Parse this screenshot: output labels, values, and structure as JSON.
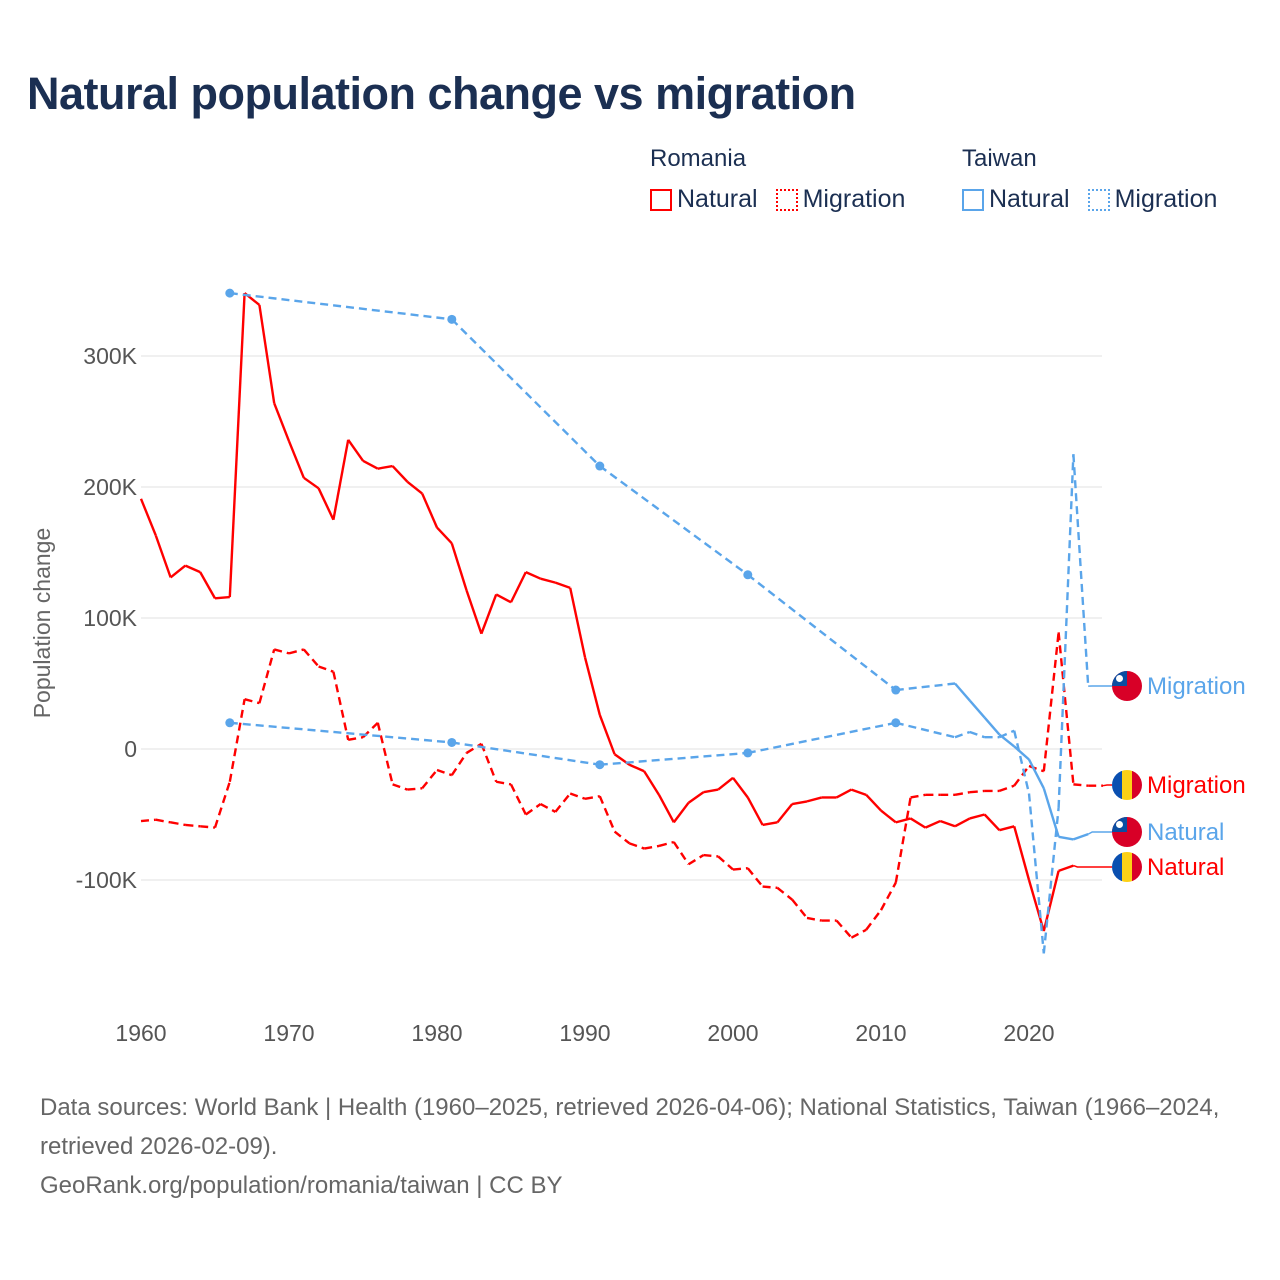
{
  "title": "Natural population change vs migration",
  "legend": {
    "groups": [
      {
        "name": "Romania",
        "color": "#ff0000",
        "items": [
          {
            "label": "Natural",
            "style": "solid"
          },
          {
            "label": "Migration",
            "style": "dotted"
          }
        ]
      },
      {
        "name": "Taiwan",
        "color": "#5aa5ea",
        "items": [
          {
            "label": "Natural",
            "style": "solid"
          },
          {
            "label": "Migration",
            "style": "dotted"
          }
        ]
      }
    ]
  },
  "footer": {
    "sources": "Data sources: World Bank | Health (1960–2025, retrieved 2026-04-06); National Statistics, Taiwan (1966–2024, retrieved 2026-02-09).",
    "credit": "GeoRank.org/population/romania/taiwan | CC BY"
  },
  "chart_data": {
    "type": "line",
    "title": "Natural population change vs migration",
    "xlabel": "",
    "ylabel": "Population change",
    "xlim": [
      1960,
      2025
    ],
    "ylim": [
      -170000,
      370000
    ],
    "x_ticks": [
      1960,
      1970,
      1980,
      1990,
      2000,
      2010,
      2020
    ],
    "y_ticks": [
      -100000,
      0,
      100000,
      200000,
      300000
    ],
    "y_tick_labels": [
      "-100K",
      "0",
      "100K",
      "200K",
      "300K"
    ],
    "grid": true,
    "legend_position": "top-right",
    "series": [
      {
        "name": "Romania Natural",
        "country": "Romania",
        "end_label": "Natural",
        "color": "#ff0000",
        "dash": "solid",
        "flag": "romania-flag",
        "x": [
          1960,
          1961,
          1962,
          1963,
          1964,
          1965,
          1966,
          1967,
          1968,
          1969,
          1970,
          1971,
          1972,
          1973,
          1974,
          1975,
          1976,
          1977,
          1978,
          1979,
          1980,
          1981,
          1982,
          1983,
          1984,
          1985,
          1986,
          1987,
          1988,
          1989,
          1990,
          1991,
          1992,
          1993,
          1994,
          1995,
          1996,
          1997,
          1998,
          1999,
          2000,
          2001,
          2002,
          2003,
          2004,
          2005,
          2006,
          2007,
          2008,
          2009,
          2010,
          2011,
          2012,
          2013,
          2014,
          2015,
          2016,
          2017,
          2018,
          2019,
          2020,
          2021,
          2022,
          2023
        ],
        "y": [
          191000,
          163000,
          131000,
          140000,
          135000,
          115000,
          116000,
          348000,
          339000,
          264000,
          235000,
          207000,
          199000,
          175000,
          236000,
          220000,
          214000,
          216000,
          204000,
          195000,
          169000,
          157000,
          121000,
          88000,
          118000,
          112000,
          135000,
          130000,
          127000,
          123000,
          70000,
          26000,
          -4000,
          -12000,
          -17000,
          -35000,
          -56000,
          -41000,
          -33000,
          -31000,
          -22000,
          -37000,
          -58000,
          -56000,
          -42000,
          -40000,
          -37000,
          -37000,
          -31000,
          -35000,
          -47000,
          -56000,
          -53000,
          -60000,
          -55000,
          -59000,
          -53000,
          -50000,
          -62000,
          -59000,
          -100000,
          -139000,
          -93000,
          -89000
        ]
      },
      {
        "name": "Romania Migration",
        "country": "Romania",
        "end_label": "Migration",
        "color": "#ff0000",
        "dash": "dashed",
        "flag": "romania-flag",
        "x": [
          1960,
          1961,
          1962,
          1963,
          1964,
          1965,
          1966,
          1967,
          1968,
          1969,
          1970,
          1971,
          1972,
          1973,
          1974,
          1975,
          1976,
          1977,
          1978,
          1979,
          1980,
          1981,
          1982,
          1983,
          1984,
          1985,
          1986,
          1987,
          1988,
          1989,
          1990,
          1991,
          1992,
          1993,
          1994,
          1995,
          1996,
          1997,
          1998,
          1999,
          2000,
          2001,
          2002,
          2003,
          2004,
          2005,
          2006,
          2007,
          2008,
          2009,
          2010,
          2011,
          2012,
          2013,
          2014,
          2015,
          2016,
          2017,
          2018,
          2019,
          2020,
          2021,
          2022,
          2023,
          2024,
          2025
        ],
        "y": [
          -55000,
          -54000,
          -56000,
          -58000,
          -59000,
          -60000,
          -25000,
          38000,
          35000,
          76000,
          73000,
          76000,
          63000,
          59000,
          7000,
          9000,
          20000,
          -27000,
          -31000,
          -30000,
          -16000,
          -20000,
          -3000,
          4000,
          -25000,
          -27000,
          -50000,
          -42000,
          -48000,
          -34000,
          -38000,
          -36000,
          -63000,
          -72000,
          -76000,
          -74000,
          -71000,
          -88000,
          -81000,
          -82000,
          -92000,
          -91000,
          -105000,
          -106000,
          -115000,
          -129000,
          -131000,
          -131000,
          -144000,
          -138000,
          -123000,
          -102000,
          -37000,
          -35000,
          -35000,
          -35000,
          -33000,
          -32000,
          -32000,
          -28000,
          -13000,
          -17000,
          89000,
          -27000,
          -28000,
          -28000
        ]
      },
      {
        "name": "Taiwan Natural",
        "country": "Taiwan",
        "end_label": "Natural",
        "color": "#5aa5ea",
        "dash": "solid",
        "flag": "taiwan-flag",
        "x": [
          1966,
          1981,
          1991,
          2001,
          2011,
          2015,
          2016,
          2017,
          2018,
          2019,
          2020,
          2021,
          2022,
          2023,
          2024
        ],
        "y": [
          348000,
          328000,
          216000,
          133000,
          45000,
          50000,
          37000,
          24000,
          11000,
          2000,
          -8000,
          -30000,
          -67000,
          -69000,
          -65000
        ],
        "isolated_points": [
          1966,
          1981,
          1991,
          2001,
          2011
        ]
      },
      {
        "name": "Taiwan Migration",
        "country": "Taiwan",
        "end_label": "Migration",
        "color": "#5aa5ea",
        "dash": "dashed",
        "flag": "taiwan-flag",
        "x": [
          1966,
          1981,
          1991,
          2001,
          2011,
          2015,
          2016,
          2017,
          2018,
          2019,
          2020,
          2021,
          2022,
          2023,
          2024
        ],
        "y": [
          20000,
          5000,
          -12000,
          -3000,
          20000,
          9000,
          13000,
          9000,
          9000,
          14000,
          -34000,
          -156000,
          -45000,
          225000,
          48000
        ],
        "isolated_points": [
          1966,
          1981,
          1991,
          2001,
          2011
        ]
      }
    ]
  }
}
